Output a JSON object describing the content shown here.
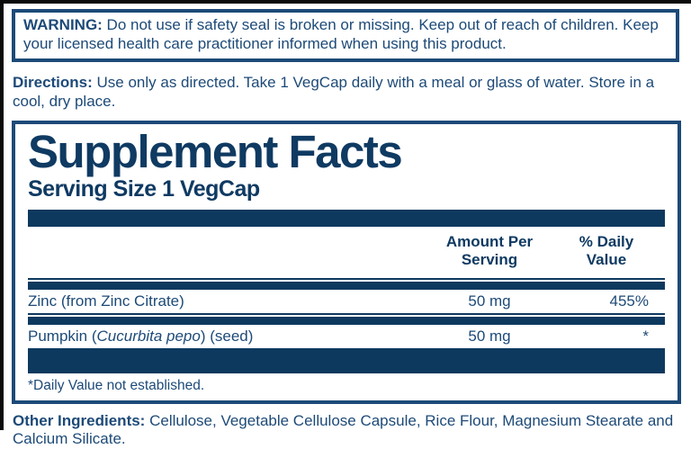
{
  "warning": {
    "label": "WARNING:",
    "text": " Do not use if safety seal is broken or missing. Keep out of reach of children. Keep your licensed health care practitioner informed when using this product."
  },
  "directions": {
    "label": "Directions:",
    "text": " Use only as directed. Take 1 VegCap daily with a meal or glass of water. Store in a cool, dry place."
  },
  "supplement_facts": {
    "title": "Supplement Facts",
    "serving_size": "Serving Size 1 VegCap",
    "columns": {
      "amount_line1": "Amount Per",
      "amount_line2": "Serving",
      "dv_line1": "% Daily",
      "dv_line2": "Value"
    },
    "rows": [
      {
        "name_prefix": "Zinc (from Zinc Citrate)",
        "name_italic": "",
        "name_suffix": "",
        "amount": "50 mg",
        "daily_value": "455%"
      },
      {
        "name_prefix": "Pumpkin (",
        "name_italic": "Cucurbita pepo",
        "name_suffix": ") (seed)",
        "amount": "50 mg",
        "daily_value": "*"
      }
    ],
    "footnote": "*Daily Value not established."
  },
  "other_ingredients": {
    "label": "Other Ingredients:",
    "text": " Cellulose, Vegetable Cellulose Capsule, Rice Flour, Magnesium Stearate and Calcium Silicate."
  },
  "colors": {
    "navy_text": "#1d4a78",
    "navy_dark_bar": "#0e395f",
    "panel_border": "#1d4a78",
    "background": "#ffffff",
    "edge_strip": "#0b0b0b"
  }
}
